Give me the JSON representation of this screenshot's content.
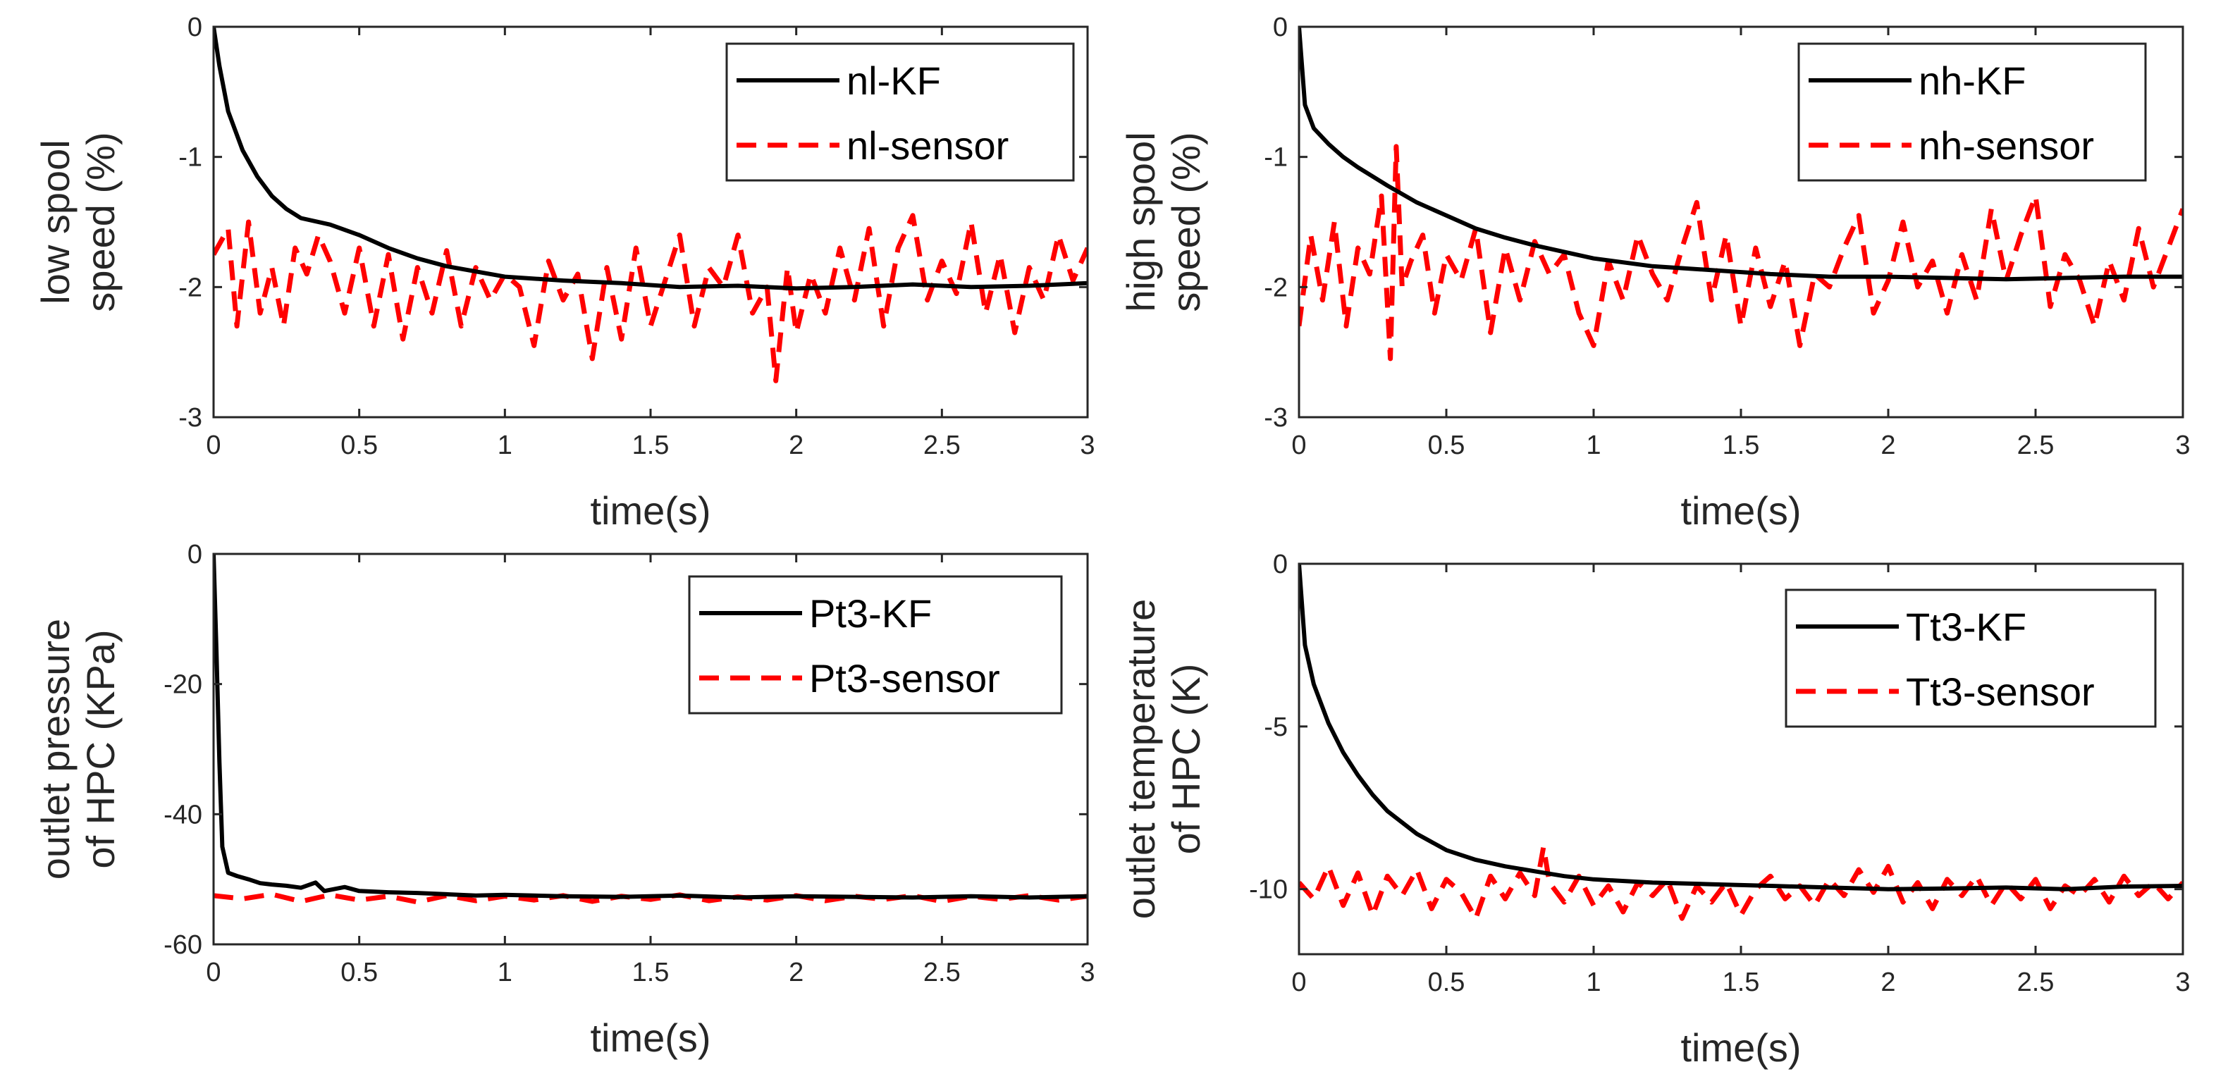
{
  "chart_data": [
    {
      "type": "line",
      "xlabel": "time(s)",
      "ylabel_lines": [
        "low spool",
        "speed (%)"
      ],
      "xlim": [
        0,
        3
      ],
      "ylim": [
        -3,
        0
      ],
      "xticks": [
        0,
        0.5,
        1,
        1.5,
        2,
        2.5,
        3
      ],
      "xtick_labels": [
        "0",
        "0.5",
        "1",
        "1.5",
        "2",
        "2.5",
        "3"
      ],
      "yticks": [
        -3,
        -2,
        -1,
        0
      ],
      "ytick_labels": [
        "-3",
        "-2",
        "-1",
        "0"
      ],
      "legend_position": "top-right",
      "series": [
        {
          "name": "nl-KF",
          "style": "solid-black",
          "x": [
            0,
            0.02,
            0.05,
            0.1,
            0.15,
            0.2,
            0.25,
            0.3,
            0.4,
            0.5,
            0.6,
            0.7,
            0.8,
            1.0,
            1.2,
            1.4,
            1.6,
            1.8,
            2.0,
            2.2,
            2.4,
            2.6,
            2.8,
            3.0
          ],
          "values": [
            0,
            -0.3,
            -0.65,
            -0.95,
            -1.15,
            -1.3,
            -1.4,
            -1.47,
            -1.52,
            -1.6,
            -1.7,
            -1.78,
            -1.84,
            -1.92,
            -1.95,
            -1.97,
            -2.0,
            -1.99,
            -2.01,
            -2.0,
            -1.98,
            -2.0,
            -1.99,
            -1.97
          ]
        },
        {
          "name": "nl-sensor",
          "style": "dashed-red",
          "x": [
            0,
            0.05,
            0.08,
            0.12,
            0.16,
            0.2,
            0.24,
            0.28,
            0.32,
            0.36,
            0.4,
            0.45,
            0.5,
            0.55,
            0.6,
            0.65,
            0.7,
            0.75,
            0.8,
            0.85,
            0.9,
            0.95,
            1.0,
            1.05,
            1.1,
            1.15,
            1.2,
            1.25,
            1.3,
            1.35,
            1.4,
            1.45,
            1.5,
            1.55,
            1.6,
            1.65,
            1.7,
            1.75,
            1.8,
            1.85,
            1.9,
            1.93,
            1.97,
            2.0,
            2.05,
            2.1,
            2.15,
            2.2,
            2.25,
            2.3,
            2.35,
            2.4,
            2.45,
            2.5,
            2.55,
            2.6,
            2.65,
            2.7,
            2.75,
            2.8,
            2.85,
            2.9,
            2.95,
            3.0
          ],
          "values": [
            -1.75,
            -1.55,
            -2.3,
            -1.5,
            -2.2,
            -1.85,
            -2.3,
            -1.7,
            -1.9,
            -1.6,
            -1.8,
            -2.2,
            -1.7,
            -2.3,
            -1.75,
            -2.4,
            -1.85,
            -2.2,
            -1.72,
            -2.3,
            -1.85,
            -2.1,
            -1.9,
            -2.0,
            -2.45,
            -1.8,
            -2.1,
            -1.9,
            -2.55,
            -1.85,
            -2.4,
            -1.7,
            -2.3,
            -1.95,
            -1.6,
            -2.3,
            -1.85,
            -2.0,
            -1.6,
            -2.2,
            -2.0,
            -2.72,
            -1.85,
            -2.35,
            -1.9,
            -2.2,
            -1.7,
            -2.1,
            -1.55,
            -2.3,
            -1.7,
            -1.45,
            -2.1,
            -1.8,
            -2.05,
            -1.5,
            -2.2,
            -1.75,
            -2.35,
            -1.85,
            -2.1,
            -1.6,
            -1.95,
            -1.7
          ]
        }
      ]
    },
    {
      "type": "line",
      "xlabel": "time(s)",
      "ylabel_lines": [
        "high spool",
        "speed (%)"
      ],
      "xlim": [
        0,
        3
      ],
      "ylim": [
        -3,
        0
      ],
      "xticks": [
        0,
        0.5,
        1,
        1.5,
        2,
        2.5,
        3
      ],
      "xtick_labels": [
        "0",
        "0.5",
        "1",
        "1.5",
        "2",
        "2.5",
        "3"
      ],
      "yticks": [
        -3,
        -2,
        -1,
        0
      ],
      "ytick_labels": [
        "-3",
        "-2",
        "-1",
        "0"
      ],
      "legend_position": "top-right",
      "series": [
        {
          "name": "nh-KF",
          "style": "solid-black",
          "x": [
            0,
            0.02,
            0.05,
            0.1,
            0.15,
            0.2,
            0.3,
            0.4,
            0.5,
            0.6,
            0.7,
            0.8,
            1.0,
            1.2,
            1.4,
            1.6,
            1.8,
            2.0,
            2.2,
            2.4,
            2.6,
            2.8,
            3.0
          ],
          "values": [
            0,
            -0.6,
            -0.78,
            -0.9,
            -1.0,
            -1.08,
            -1.22,
            -1.35,
            -1.45,
            -1.55,
            -1.62,
            -1.68,
            -1.78,
            -1.84,
            -1.87,
            -1.9,
            -1.92,
            -1.92,
            -1.93,
            -1.94,
            -1.93,
            -1.92,
            -1.92
          ]
        },
        {
          "name": "nh-sensor",
          "style": "dashed-red",
          "x": [
            0,
            0.04,
            0.08,
            0.12,
            0.16,
            0.2,
            0.24,
            0.28,
            0.31,
            0.33,
            0.35,
            0.38,
            0.42,
            0.46,
            0.5,
            0.55,
            0.6,
            0.65,
            0.7,
            0.75,
            0.8,
            0.85,
            0.9,
            0.95,
            1.0,
            1.05,
            1.1,
            1.15,
            1.2,
            1.25,
            1.3,
            1.35,
            1.4,
            1.45,
            1.5,
            1.55,
            1.6,
            1.65,
            1.7,
            1.75,
            1.8,
            1.85,
            1.9,
            1.95,
            2.0,
            2.05,
            2.1,
            2.15,
            2.2,
            2.25,
            2.3,
            2.35,
            2.4,
            2.45,
            2.5,
            2.55,
            2.6,
            2.65,
            2.7,
            2.75,
            2.8,
            2.85,
            2.9,
            2.95,
            3.0
          ],
          "values": [
            -2.3,
            -1.6,
            -2.1,
            -1.5,
            -2.3,
            -1.7,
            -1.9,
            -1.3,
            -2.55,
            -0.92,
            -2.0,
            -1.8,
            -1.6,
            -2.2,
            -1.75,
            -1.95,
            -1.55,
            -2.35,
            -1.7,
            -2.1,
            -1.65,
            -1.9,
            -1.75,
            -2.2,
            -2.45,
            -1.8,
            -2.1,
            -1.6,
            -1.9,
            -2.1,
            -1.7,
            -1.35,
            -2.1,
            -1.6,
            -2.3,
            -1.7,
            -2.15,
            -1.8,
            -2.45,
            -1.9,
            -2.0,
            -1.7,
            -1.45,
            -2.2,
            -1.95,
            -1.5,
            -2.0,
            -1.8,
            -2.2,
            -1.75,
            -2.1,
            -1.4,
            -1.95,
            -1.6,
            -1.3,
            -2.15,
            -1.75,
            -1.95,
            -2.3,
            -1.8,
            -2.1,
            -1.55,
            -2.0,
            -1.7,
            -1.4
          ]
        }
      ]
    },
    {
      "type": "line",
      "xlabel": "time(s)",
      "ylabel_lines": [
        "outlet pressure",
        "of HPC (KPa)"
      ],
      "xlim": [
        0,
        3
      ],
      "ylim": [
        -60,
        0
      ],
      "xticks": [
        0,
        0.5,
        1,
        1.5,
        2,
        2.5,
        3
      ],
      "xtick_labels": [
        "0",
        "0.5",
        "1",
        "1.5",
        "2",
        "2.5",
        "3"
      ],
      "yticks": [
        -60,
        -40,
        -20,
        0
      ],
      "ytick_labels": [
        "-60",
        "-40",
        "-20",
        "0"
      ],
      "legend_position": "top-right",
      "series": [
        {
          "name": "Pt3-KF",
          "style": "solid-black",
          "x": [
            0,
            0.01,
            0.02,
            0.03,
            0.05,
            0.08,
            0.12,
            0.16,
            0.2,
            0.25,
            0.3,
            0.35,
            0.38,
            0.45,
            0.5,
            0.6,
            0.7,
            0.8,
            0.9,
            1.0,
            1.2,
            1.4,
            1.6,
            1.8,
            2.0,
            2.2,
            2.4,
            2.6,
            2.8,
            3.0
          ],
          "values": [
            0,
            -15,
            -32,
            -45,
            -49,
            -49.5,
            -50,
            -50.6,
            -50.8,
            -51,
            -51.3,
            -50.5,
            -51.8,
            -51.2,
            -51.8,
            -52,
            -52.1,
            -52.3,
            -52.5,
            -52.4,
            -52.6,
            -52.7,
            -52.5,
            -52.8,
            -52.6,
            -52.7,
            -52.8,
            -52.6,
            -52.8,
            -52.6
          ]
        },
        {
          "name": "Pt3-sensor",
          "style": "dashed-red",
          "x": [
            0,
            0.1,
            0.2,
            0.3,
            0.4,
            0.5,
            0.6,
            0.7,
            0.8,
            0.9,
            1.0,
            1.1,
            1.2,
            1.3,
            1.4,
            1.5,
            1.6,
            1.7,
            1.8,
            1.9,
            2.0,
            2.1,
            2.2,
            2.3,
            2.4,
            2.5,
            2.6,
            2.7,
            2.8,
            2.9,
            3.0
          ],
          "values": [
            -52.5,
            -53,
            -52.3,
            -53.4,
            -52.4,
            -53.2,
            -52.6,
            -53.5,
            -52.5,
            -53.3,
            -52.6,
            -53.2,
            -52.5,
            -53.4,
            -52.6,
            -53.1,
            -52.4,
            -53.3,
            -52.7,
            -53.2,
            -52.5,
            -53.3,
            -52.6,
            -53.1,
            -52.5,
            -53.4,
            -52.6,
            -53.1,
            -52.5,
            -53.2,
            -52.6
          ]
        }
      ]
    },
    {
      "type": "line",
      "xlabel": "time(s)",
      "ylabel_lines": [
        "outlet temperature",
        "of HPC (K)"
      ],
      "xlim": [
        0,
        3
      ],
      "ylim": [
        -12,
        0
      ],
      "xticks": [
        0,
        0.5,
        1,
        1.5,
        2,
        2.5,
        3
      ],
      "xtick_labels": [
        "0",
        "0.5",
        "1",
        "1.5",
        "2",
        "2.5",
        "3"
      ],
      "yticks": [
        -10,
        -5,
        0
      ],
      "ytick_labels": [
        "-10",
        "-5",
        "0"
      ],
      "legend_position": "top-right",
      "series": [
        {
          "name": "Tt3-KF",
          "style": "solid-black",
          "x": [
            0,
            0.02,
            0.05,
            0.1,
            0.15,
            0.2,
            0.25,
            0.3,
            0.4,
            0.5,
            0.6,
            0.7,
            0.8,
            0.9,
            1.0,
            1.2,
            1.4,
            1.6,
            1.8,
            2.0,
            2.2,
            2.4,
            2.6,
            2.8,
            3.0
          ],
          "values": [
            0,
            -2.5,
            -3.7,
            -4.9,
            -5.8,
            -6.5,
            -7.1,
            -7.6,
            -8.3,
            -8.8,
            -9.1,
            -9.3,
            -9.45,
            -9.6,
            -9.7,
            -9.8,
            -9.85,
            -9.9,
            -9.95,
            -10.0,
            -9.98,
            -9.95,
            -10.0,
            -9.92,
            -9.9
          ]
        },
        {
          "name": "Tt3-sensor",
          "style": "dashed-red",
          "x": [
            0,
            0.05,
            0.1,
            0.15,
            0.2,
            0.25,
            0.3,
            0.35,
            0.4,
            0.45,
            0.5,
            0.55,
            0.6,
            0.65,
            0.7,
            0.75,
            0.8,
            0.83,
            0.85,
            0.9,
            0.95,
            1.0,
            1.05,
            1.1,
            1.15,
            1.2,
            1.25,
            1.3,
            1.35,
            1.4,
            1.45,
            1.5,
            1.55,
            1.6,
            1.65,
            1.7,
            1.75,
            1.8,
            1.85,
            1.9,
            1.95,
            2.0,
            2.05,
            2.1,
            2.15,
            2.2,
            2.25,
            2.3,
            2.35,
            2.4,
            2.45,
            2.5,
            2.55,
            2.6,
            2.65,
            2.7,
            2.75,
            2.8,
            2.85,
            2.9,
            2.95,
            3.0
          ],
          "values": [
            -9.8,
            -10.3,
            -9.3,
            -10.5,
            -9.5,
            -10.8,
            -9.6,
            -10.2,
            -9.4,
            -10.6,
            -9.7,
            -10.1,
            -10.9,
            -9.6,
            -10.3,
            -9.5,
            -10.2,
            -8.7,
            -9.8,
            -10.4,
            -9.6,
            -10.5,
            -9.9,
            -10.7,
            -9.8,
            -10.2,
            -9.7,
            -10.9,
            -9.9,
            -10.4,
            -9.8,
            -10.8,
            -10.0,
            -9.6,
            -10.3,
            -9.9,
            -10.5,
            -9.7,
            -10.2,
            -9.4,
            -10.1,
            -9.3,
            -10.4,
            -9.8,
            -10.6,
            -9.7,
            -10.2,
            -9.6,
            -10.5,
            -9.8,
            -10.3,
            -9.7,
            -10.6,
            -9.9,
            -10.2,
            -9.7,
            -10.4,
            -9.6,
            -10.2,
            -9.8,
            -10.3,
            -9.8
          ]
        }
      ]
    }
  ],
  "colors": {
    "kf": "#000000",
    "sensor": "#ff0000",
    "axis": "#262626"
  }
}
